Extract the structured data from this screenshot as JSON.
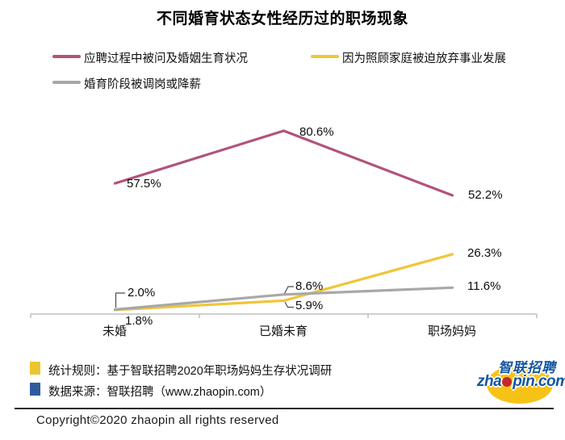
{
  "title": "不同婚育状态女性经历过的职场现象",
  "chart_data": {
    "type": "line",
    "title": "不同婚育状态女性经历过的职场现象",
    "categories": [
      "未婚",
      "已婚未育",
      "职场妈妈"
    ],
    "series": [
      {
        "name": "应聘过程中被问及婚姻生育状况",
        "color": "#b1537b",
        "values": [
          57.5,
          80.6,
          52.2
        ],
        "value_labels": [
          "57.5%",
          "80.6%",
          "52.2%"
        ]
      },
      {
        "name": "因为照顾家庭被迫放弃事业发展",
        "color": "#f0c53a",
        "values": [
          1.8,
          5.9,
          26.3
        ],
        "value_labels": [
          "1.8%",
          "5.9%",
          "26.3%"
        ]
      },
      {
        "name": "婚育阶段被调岗或降薪",
        "color": "#a8a8a8",
        "values": [
          2.0,
          8.6,
          11.6
        ],
        "value_labels": [
          "2.0%",
          "8.6%",
          "11.6%"
        ]
      }
    ],
    "xlabel": "",
    "ylabel": "",
    "ylim": [
      0,
      90
    ],
    "grid": false,
    "legend_position": "top-left, two rows",
    "axis_color": "#bfbfbf"
  },
  "footer": {
    "note1": "统计规则：基于智联招聘2020年职场妈妈生存状况调研",
    "note1_color": "#edc531",
    "note2": "数据来源：智联招聘（www.zhaopin.com）",
    "note2_color": "#2f5b9e",
    "copyright": "Copyright©2020  zhaopin all rights reserved"
  },
  "logo": {
    "cn": "智联招聘",
    "en_pre": "zha",
    "en_post": "pin.com",
    "blue": "#1456a0",
    "yellow": "#f6c216",
    "red": "#c4272e"
  }
}
